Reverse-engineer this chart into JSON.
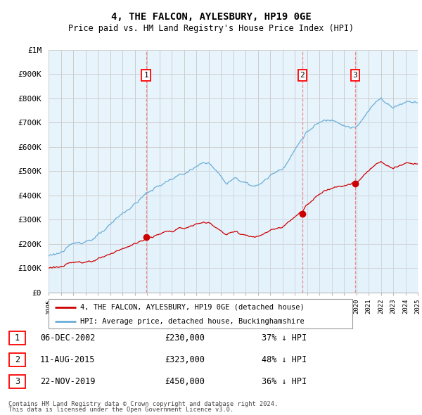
{
  "title": "4, THE FALCON, AYLESBURY, HP19 0GE",
  "subtitle": "Price paid vs. HM Land Registry's House Price Index (HPI)",
  "yticks": [
    0,
    100000,
    200000,
    300000,
    400000,
    500000,
    600000,
    700000,
    800000,
    900000,
    1000000
  ],
  "ytick_labels": [
    "£0",
    "£100K",
    "£200K",
    "£300K",
    "£400K",
    "£500K",
    "£600K",
    "£700K",
    "£800K",
    "£900K",
    "£1M"
  ],
  "xmin": 1995,
  "xmax": 2025,
  "hpi_color": "#6baed6",
  "hpi_fill_color": "#ddeeff",
  "price_color": "#cc0000",
  "dashed_color": "#e88080",
  "sale_dates": [
    2002.92,
    2015.61,
    2019.9
  ],
  "sale_prices": [
    230000,
    323000,
    450000
  ],
  "sale_labels": [
    "1",
    "2",
    "3"
  ],
  "legend_property": "4, THE FALCON, AYLESBURY, HP19 0GE (detached house)",
  "legend_hpi": "HPI: Average price, detached house, Buckinghamshire",
  "table_rows": [
    [
      "1",
      "06-DEC-2002",
      "£230,000",
      "37% ↓ HPI"
    ],
    [
      "2",
      "11-AUG-2015",
      "£323,000",
      "48% ↓ HPI"
    ],
    [
      "3",
      "22-NOV-2019",
      "£450,000",
      "36% ↓ HPI"
    ]
  ],
  "footnote1": "Contains HM Land Registry data © Crown copyright and database right 2024.",
  "footnote2": "This data is licensed under the Open Government Licence v3.0.",
  "background_color": "#ffffff",
  "chart_bg_color": "#e8f4fc",
  "grid_color": "#cccccc"
}
